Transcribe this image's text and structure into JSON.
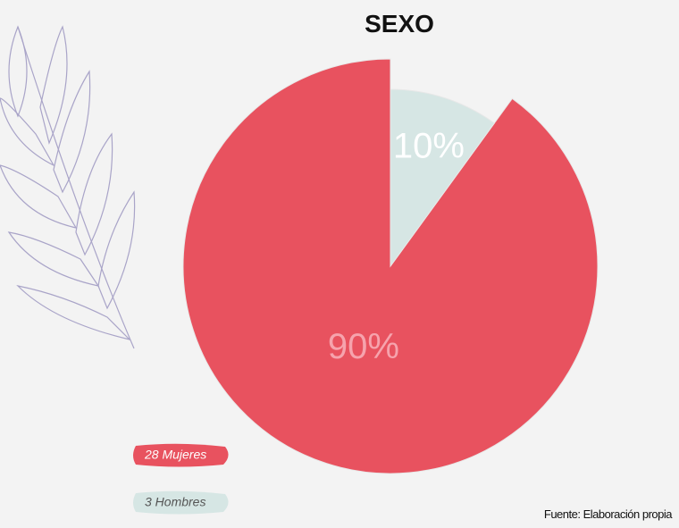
{
  "chart_data": {
    "type": "pie",
    "title": "SEXO",
    "categories": [
      "28 Mujeres",
      "3 Hombres"
    ],
    "values": [
      90,
      10
    ],
    "value_labels": [
      "90%",
      "10%"
    ],
    "colors": [
      "#e8525f",
      "#d6e6e4"
    ],
    "source": "Fuente: Elaboración propia"
  }
}
